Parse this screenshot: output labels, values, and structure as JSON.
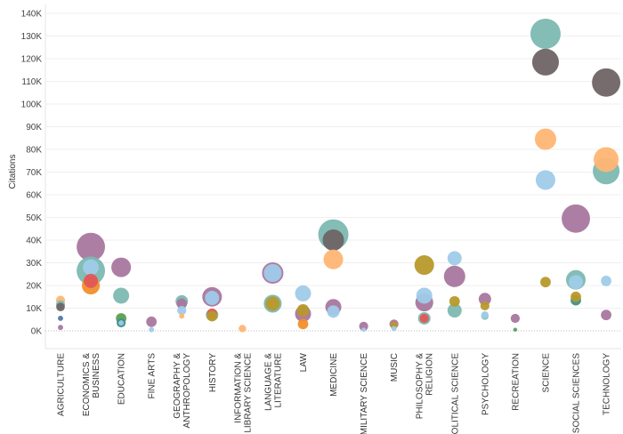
{
  "chart_data": {
    "type": "scatter",
    "subtype": "bubble",
    "title": "",
    "xlabel": "",
    "ylabel": "Citations",
    "ylim": [
      -8000,
      143000
    ],
    "y_ticks": [
      0,
      10000,
      20000,
      30000,
      40000,
      50000,
      60000,
      70000,
      80000,
      90000,
      100000,
      110000,
      120000,
      130000,
      140000
    ],
    "y_tick_labels": [
      "0K",
      "10K",
      "20K",
      "30K",
      "40K",
      "50K",
      "60K",
      "70K",
      "80K",
      "90K",
      "100K",
      "110K",
      "120K",
      "130K",
      "140K"
    ],
    "grid": true,
    "legend": "none",
    "categories": [
      {
        "label": [
          "AGRICULTURE"
        ]
      },
      {
        "label": [
          "ECONOMICS &",
          "BUSINESS"
        ]
      },
      {
        "label": [
          "EDUCATION"
        ]
      },
      {
        "label": [
          "FINE ARTS"
        ]
      },
      {
        "label": [
          "GEOGRAPHY &",
          "ANTHROPOLOGY"
        ]
      },
      {
        "label": [
          "HISTORY"
        ]
      },
      {
        "label": [
          "INFORMATION &",
          "LIBRARY SCIENCE"
        ]
      },
      {
        "label": [
          "LANGUAGE &",
          "LITERATURE"
        ]
      },
      {
        "label": [
          "LAW"
        ]
      },
      {
        "label": [
          "MEDICINE"
        ]
      },
      {
        "label": [
          "MILITARY SCIENCE"
        ]
      },
      {
        "label": [
          "MUSIC"
        ]
      },
      {
        "label": [
          "PHILOSOPHY &",
          "RELIGION"
        ]
      },
      {
        "label": [
          "POLITICAL SCIENCE"
        ]
      },
      {
        "label": [
          "PSYCHOLOGY"
        ]
      },
      {
        "label": [
          "RECREATION"
        ]
      },
      {
        "label": [
          "SCIENCE"
        ]
      },
      {
        "label": [
          "SOCIAL SCIENCES"
        ]
      },
      {
        "label": [
          "TECHNOLOGY"
        ]
      }
    ],
    "colors": {
      "purple": "#a9779f",
      "teal": "#7cb9b1",
      "lightblue": "#9fcbe9",
      "orange": "#f28e2b",
      "lightorange": "#ffb574",
      "darkgray": "#6f6465",
      "olive": "#b7992b",
      "green": "#59a14f",
      "darkblue": "#4e79a7",
      "red": "#e15759",
      "darkteal": "#3f8f8a"
    },
    "points": [
      {
        "cat": 0,
        "value": 13500,
        "size": 9,
        "color": "lightorange"
      },
      {
        "cat": 0,
        "value": 11500,
        "size": 9,
        "color": "teal"
      },
      {
        "cat": 0,
        "value": 10500,
        "size": 8,
        "color": "darkgray"
      },
      {
        "cat": 0,
        "value": 5500,
        "size": 3,
        "color": "darkblue"
      },
      {
        "cat": 0,
        "value": 1500,
        "size": 3,
        "color": "purple"
      },
      {
        "cat": 1,
        "value": 37000,
        "size": 88,
        "color": "purple"
      },
      {
        "cat": 1,
        "value": 26500,
        "size": 88,
        "color": "teal"
      },
      {
        "cat": 1,
        "value": 22000,
        "size": 22,
        "color": "red"
      },
      {
        "cat": 1,
        "value": 28000,
        "size": 28,
        "color": "lightblue"
      },
      {
        "cat": 1,
        "value": 20000,
        "size": 35,
        "color": "orange"
      },
      {
        "cat": 2,
        "value": 28000,
        "size": 42,
        "color": "purple"
      },
      {
        "cat": 2,
        "value": 15500,
        "size": 28,
        "color": "teal"
      },
      {
        "cat": 2,
        "value": 5500,
        "size": 12,
        "color": "green"
      },
      {
        "cat": 2,
        "value": 3500,
        "size": 9,
        "color": "darkteal"
      },
      {
        "cat": 2,
        "value": 3500,
        "size": 3,
        "color": "lightblue"
      },
      {
        "cat": 3,
        "value": 4000,
        "size": 12,
        "color": "purple"
      },
      {
        "cat": 3,
        "value": 500,
        "size": 3,
        "color": "lightblue"
      },
      {
        "cat": 4,
        "value": 12000,
        "size": 12,
        "color": "purple"
      },
      {
        "cat": 4,
        "value": 13000,
        "size": 17,
        "color": "teal"
      },
      {
        "cat": 4,
        "value": 9000,
        "size": 9,
        "color": "lightblue"
      },
      {
        "cat": 4,
        "value": 6500,
        "size": 3,
        "color": "lightorange"
      },
      {
        "cat": 5,
        "value": 15000,
        "size": 42,
        "color": "purple"
      },
      {
        "cat": 5,
        "value": 14500,
        "size": 22,
        "color": "lightblue"
      },
      {
        "cat": 5,
        "value": 7000,
        "size": 17,
        "color": "teal"
      },
      {
        "cat": 5,
        "value": 7500,
        "size": 12,
        "color": "red"
      },
      {
        "cat": 5,
        "value": 6500,
        "size": 12,
        "color": "olive"
      },
      {
        "cat": 6,
        "value": 1000,
        "size": 6,
        "color": "lightorange"
      },
      {
        "cat": 7,
        "value": 25500,
        "size": 50,
        "color": "purple"
      },
      {
        "cat": 7,
        "value": 25500,
        "size": 35,
        "color": "lightblue"
      },
      {
        "cat": 7,
        "value": 12000,
        "size": 35,
        "color": "teal"
      },
      {
        "cat": 7,
        "value": 12000,
        "size": 22,
        "color": "olive"
      },
      {
        "cat": 8,
        "value": 16500,
        "size": 28,
        "color": "lightblue"
      },
      {
        "cat": 8,
        "value": 7500,
        "size": 28,
        "color": "purple"
      },
      {
        "cat": 8,
        "value": 9000,
        "size": 17,
        "color": "olive"
      },
      {
        "cat": 8,
        "value": 3000,
        "size": 12,
        "color": "orange"
      },
      {
        "cat": 9,
        "value": 40000,
        "size": 50,
        "color": "darkgray"
      },
      {
        "cat": 9,
        "value": 42500,
        "size": 100,
        "color": "teal"
      },
      {
        "cat": 9,
        "value": 31500,
        "size": 42,
        "color": "lightorange"
      },
      {
        "cat": 9,
        "value": 10500,
        "size": 28,
        "color": "purple"
      },
      {
        "cat": 9,
        "value": 8500,
        "size": 17,
        "color": "lightblue"
      },
      {
        "cat": 10,
        "value": 2000,
        "size": 9,
        "color": "purple"
      },
      {
        "cat": 10,
        "value": 500,
        "size": 2,
        "color": "lightblue"
      },
      {
        "cat": 11,
        "value": 3000,
        "size": 9,
        "color": "purple"
      },
      {
        "cat": 11,
        "value": 2500,
        "size": 6,
        "color": "olive"
      },
      {
        "cat": 11,
        "value": 1000,
        "size": 3,
        "color": "lightblue"
      },
      {
        "cat": 12,
        "value": 29000,
        "size": 42,
        "color": "olive"
      },
      {
        "cat": 12,
        "value": 12500,
        "size": 35,
        "color": "purple"
      },
      {
        "cat": 12,
        "value": 15500,
        "size": 28,
        "color": "lightblue"
      },
      {
        "cat": 12,
        "value": 5500,
        "size": 17,
        "color": "teal"
      },
      {
        "cat": 12,
        "value": 5500,
        "size": 9,
        "color": "red"
      },
      {
        "cat": 13,
        "value": 32000,
        "size": 22,
        "color": "lightblue"
      },
      {
        "cat": 13,
        "value": 24000,
        "size": 50,
        "color": "purple"
      },
      {
        "cat": 13,
        "value": 9000,
        "size": 22,
        "color": "teal"
      },
      {
        "cat": 13,
        "value": 13000,
        "size": 12,
        "color": "olive"
      },
      {
        "cat": 14,
        "value": 14000,
        "size": 17,
        "color": "purple"
      },
      {
        "cat": 14,
        "value": 11000,
        "size": 9,
        "color": "olive"
      },
      {
        "cat": 14,
        "value": 6500,
        "size": 6,
        "color": "teal"
      },
      {
        "cat": 14,
        "value": 7000,
        "size": 6,
        "color": "lightblue"
      },
      {
        "cat": 15,
        "value": 5500,
        "size": 9,
        "color": "purple"
      },
      {
        "cat": 15,
        "value": 500,
        "size": 2,
        "color": "teal"
      },
      {
        "cat": 15,
        "value": 500,
        "size": 1,
        "color": "green"
      },
      {
        "cat": 16,
        "value": 131000,
        "size": 100,
        "color": "teal"
      },
      {
        "cat": 16,
        "value": 118500,
        "size": 78,
        "color": "darkgray"
      },
      {
        "cat": 16,
        "value": 84500,
        "size": 50,
        "color": "lightorange"
      },
      {
        "cat": 16,
        "value": 66500,
        "size": 42,
        "color": "lightblue"
      },
      {
        "cat": 16,
        "value": 21500,
        "size": 12,
        "color": "olive"
      },
      {
        "cat": 17,
        "value": 49500,
        "size": 88,
        "color": "purple"
      },
      {
        "cat": 17,
        "value": 22500,
        "size": 42,
        "color": "teal"
      },
      {
        "cat": 17,
        "value": 21500,
        "size": 22,
        "color": "lightblue"
      },
      {
        "cat": 17,
        "value": 13500,
        "size": 12,
        "color": "darkteal"
      },
      {
        "cat": 17,
        "value": 15000,
        "size": 12,
        "color": "olive"
      },
      {
        "cat": 18,
        "value": 109500,
        "size": 88,
        "color": "darkgray"
      },
      {
        "cat": 18,
        "value": 70500,
        "size": 78,
        "color": "teal"
      },
      {
        "cat": 18,
        "value": 75500,
        "size": 68,
        "color": "lightorange"
      },
      {
        "cat": 18,
        "value": 22000,
        "size": 12,
        "color": "lightblue"
      },
      {
        "cat": 18,
        "value": 7000,
        "size": 12,
        "color": "purple"
      }
    ]
  }
}
